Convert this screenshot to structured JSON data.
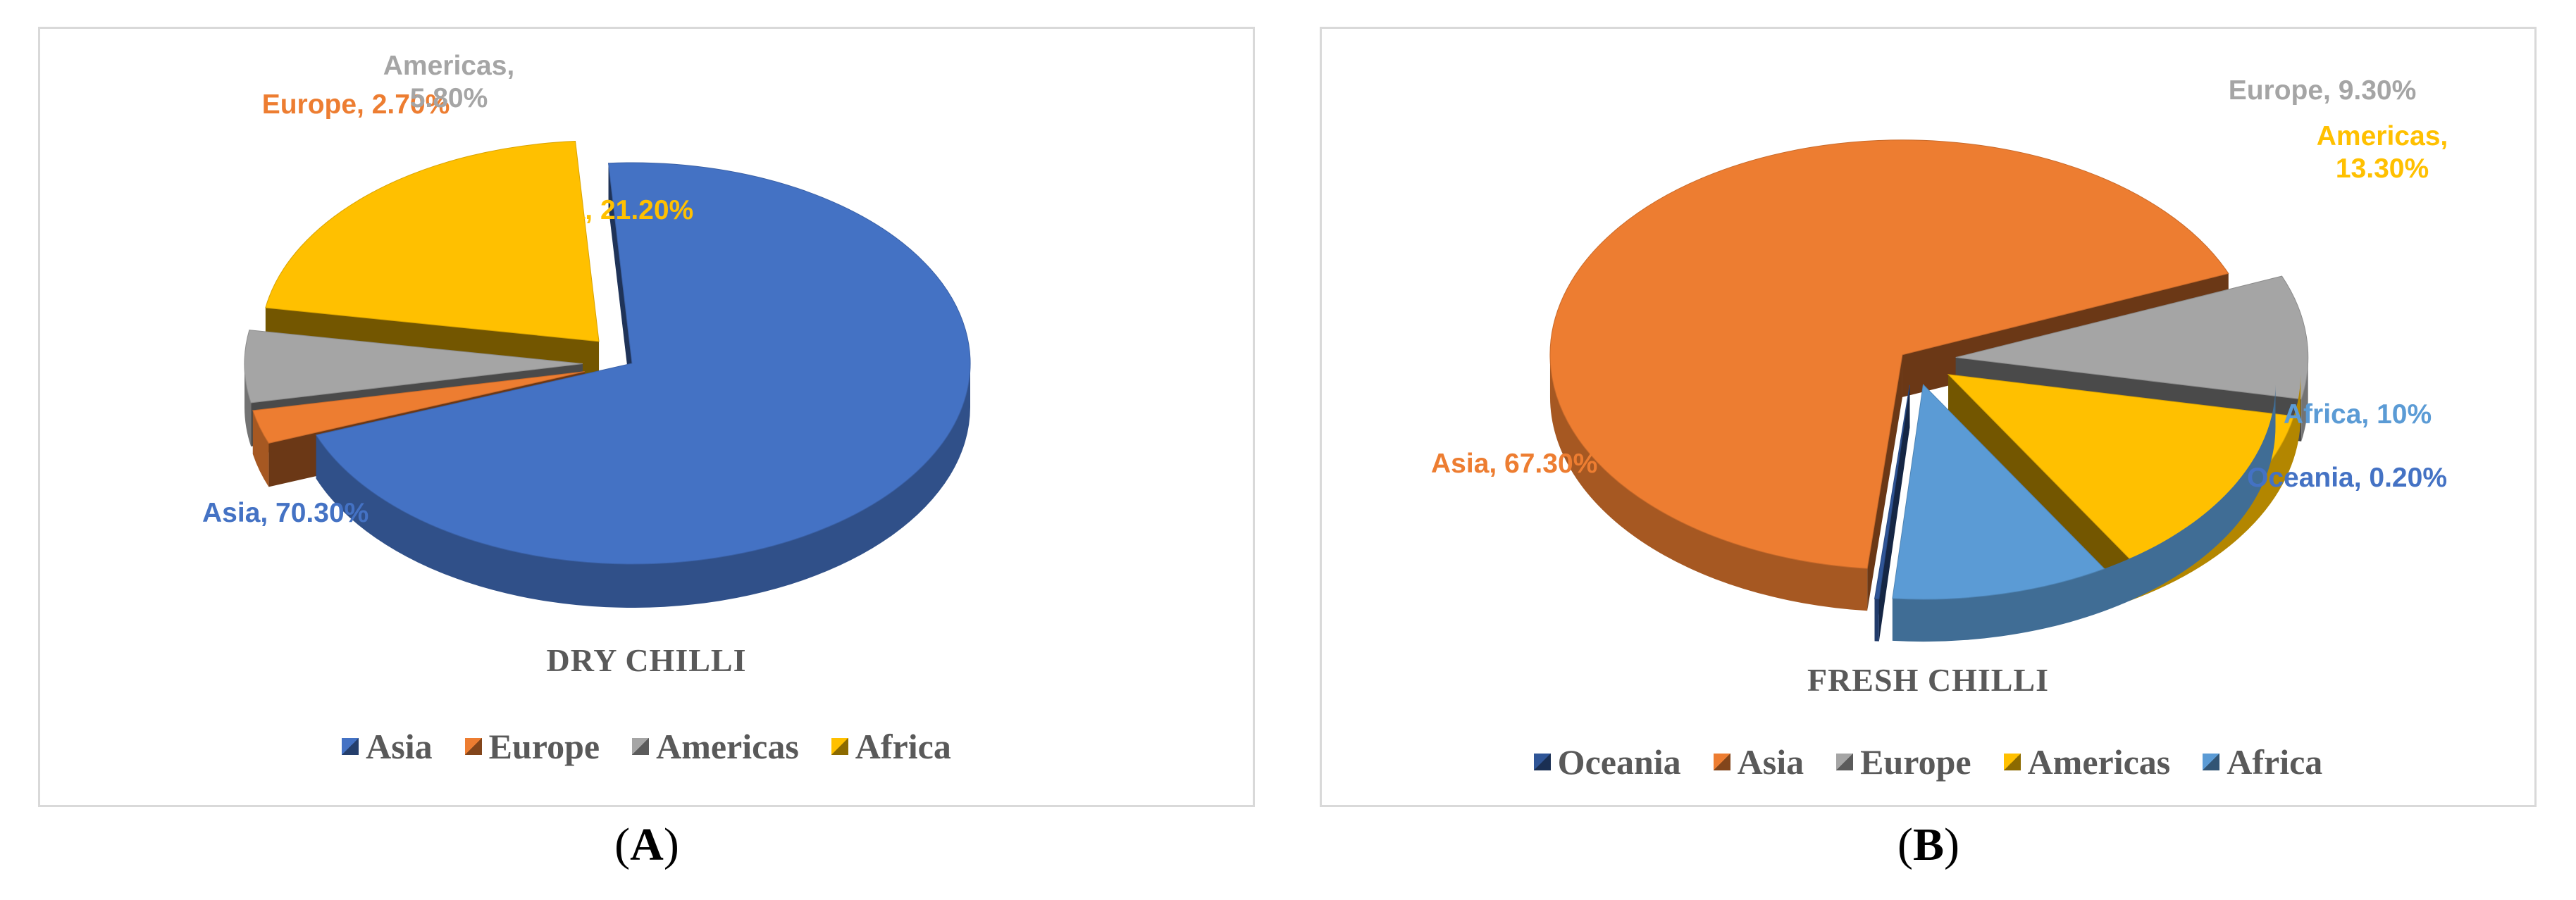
{
  "chart_data": [
    {
      "type": "pie",
      "title": "DRY CHILLI",
      "panel_label": "A",
      "categories": [
        "Asia",
        "Europe",
        "Americas",
        "Africa"
      ],
      "values": [
        70.3,
        2.7,
        5.8,
        21.2
      ],
      "data_labels": [
        "Asia, 70.30%",
        "Europe, 2.70%",
        "Americas, 5.80%",
        "Africa, 21.20%"
      ],
      "colors": [
        "#4472c4",
        "#ed7d31",
        "#a5a5a5",
        "#ffc000"
      ],
      "legend": {
        "position": "bottom",
        "entries": [
          "Asia",
          "Europe",
          "Americas",
          "Africa"
        ]
      },
      "style": "3d-exploded"
    },
    {
      "type": "pie",
      "title": "FRESH CHILLI",
      "panel_label": "B",
      "categories": [
        "Oceania",
        "Asia",
        "Europe",
        "Americas",
        "Africa"
      ],
      "values": [
        0.2,
        67.3,
        9.3,
        13.3,
        10
      ],
      "data_labels": [
        "Oceania, 0.20%",
        "Asia, 67.30%",
        "Europe, 9.30%",
        "Americas, 13.30%",
        "Africa, 10%"
      ],
      "colors": [
        "#2f5597",
        "#ed7d31",
        "#a5a5a5",
        "#ffc000",
        "#5b9bd5"
      ],
      "label_colors": [
        "#4472c4",
        "#ed7d31",
        "#a5a5a5",
        "#ffc000",
        "#5b9bd5"
      ],
      "legend": {
        "position": "bottom",
        "entries": [
          "Oceania",
          "Asia",
          "Europe",
          "Americas",
          "Africa"
        ]
      },
      "style": "3d-exploded"
    }
  ]
}
